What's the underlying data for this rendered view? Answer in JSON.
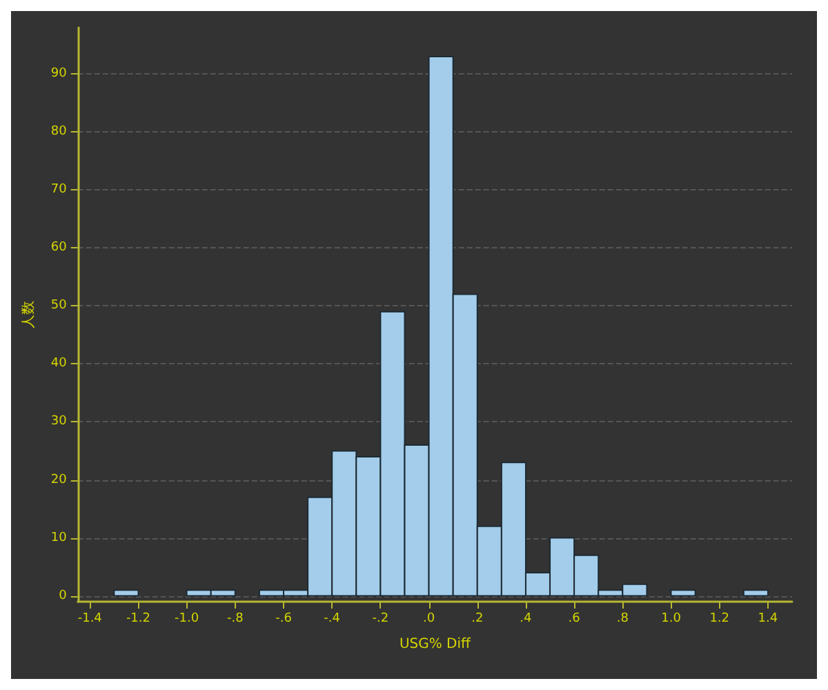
{
  "chart_data": {
    "type": "histogram",
    "xlabel": "USG% Diff",
    "ylabel": "人数",
    "color": "#a3cdea",
    "bins": [
      -1.3,
      -1.2,
      -1.1,
      -1.0,
      -0.9,
      -0.8,
      -0.7,
      -0.6,
      -0.5,
      -0.4,
      -0.3,
      -0.2,
      -0.1,
      0,
      0.1,
      0.2,
      0.3,
      0.4,
      0.5,
      0.6,
      0.7,
      0.8,
      0.9,
      1.0,
      1.1,
      1.2,
      1.3,
      1.4
    ],
    "values": [
      1,
      0,
      0,
      1,
      1,
      0,
      1,
      1,
      17,
      25,
      24,
      49,
      26,
      93,
      52,
      12,
      23,
      4,
      10,
      7,
      1,
      2,
      0,
      1,
      0,
      0,
      1
    ],
    "xlim": [
      -1.45,
      1.5
    ],
    "ylim": [
      -1,
      98
    ],
    "xticks": [
      {
        "value": -1.4,
        "label": "-1.4"
      },
      {
        "value": -1.2,
        "label": "-1.2"
      },
      {
        "value": -1.0,
        "label": "-1.0"
      },
      {
        "value": -0.8,
        "label": "-.8"
      },
      {
        "value": -0.6,
        "label": "-.6"
      },
      {
        "value": -0.4,
        "label": "-.4"
      },
      {
        "value": -0.2,
        "label": "-.2"
      },
      {
        "value": 0,
        "label": ".0"
      },
      {
        "value": 0.2,
        "label": ".2"
      },
      {
        "value": 0.4,
        "label": ".4"
      },
      {
        "value": 0.6,
        "label": ".6"
      },
      {
        "value": 0.8,
        "label": ".8"
      },
      {
        "value": 1.0,
        "label": "1.0"
      },
      {
        "value": 1.2,
        "label": "1.2"
      },
      {
        "value": 1.4,
        "label": "1.4"
      }
    ],
    "yticks": [
      0,
      10,
      20,
      30,
      40,
      50,
      60,
      70,
      80,
      90
    ],
    "grid": "y"
  }
}
